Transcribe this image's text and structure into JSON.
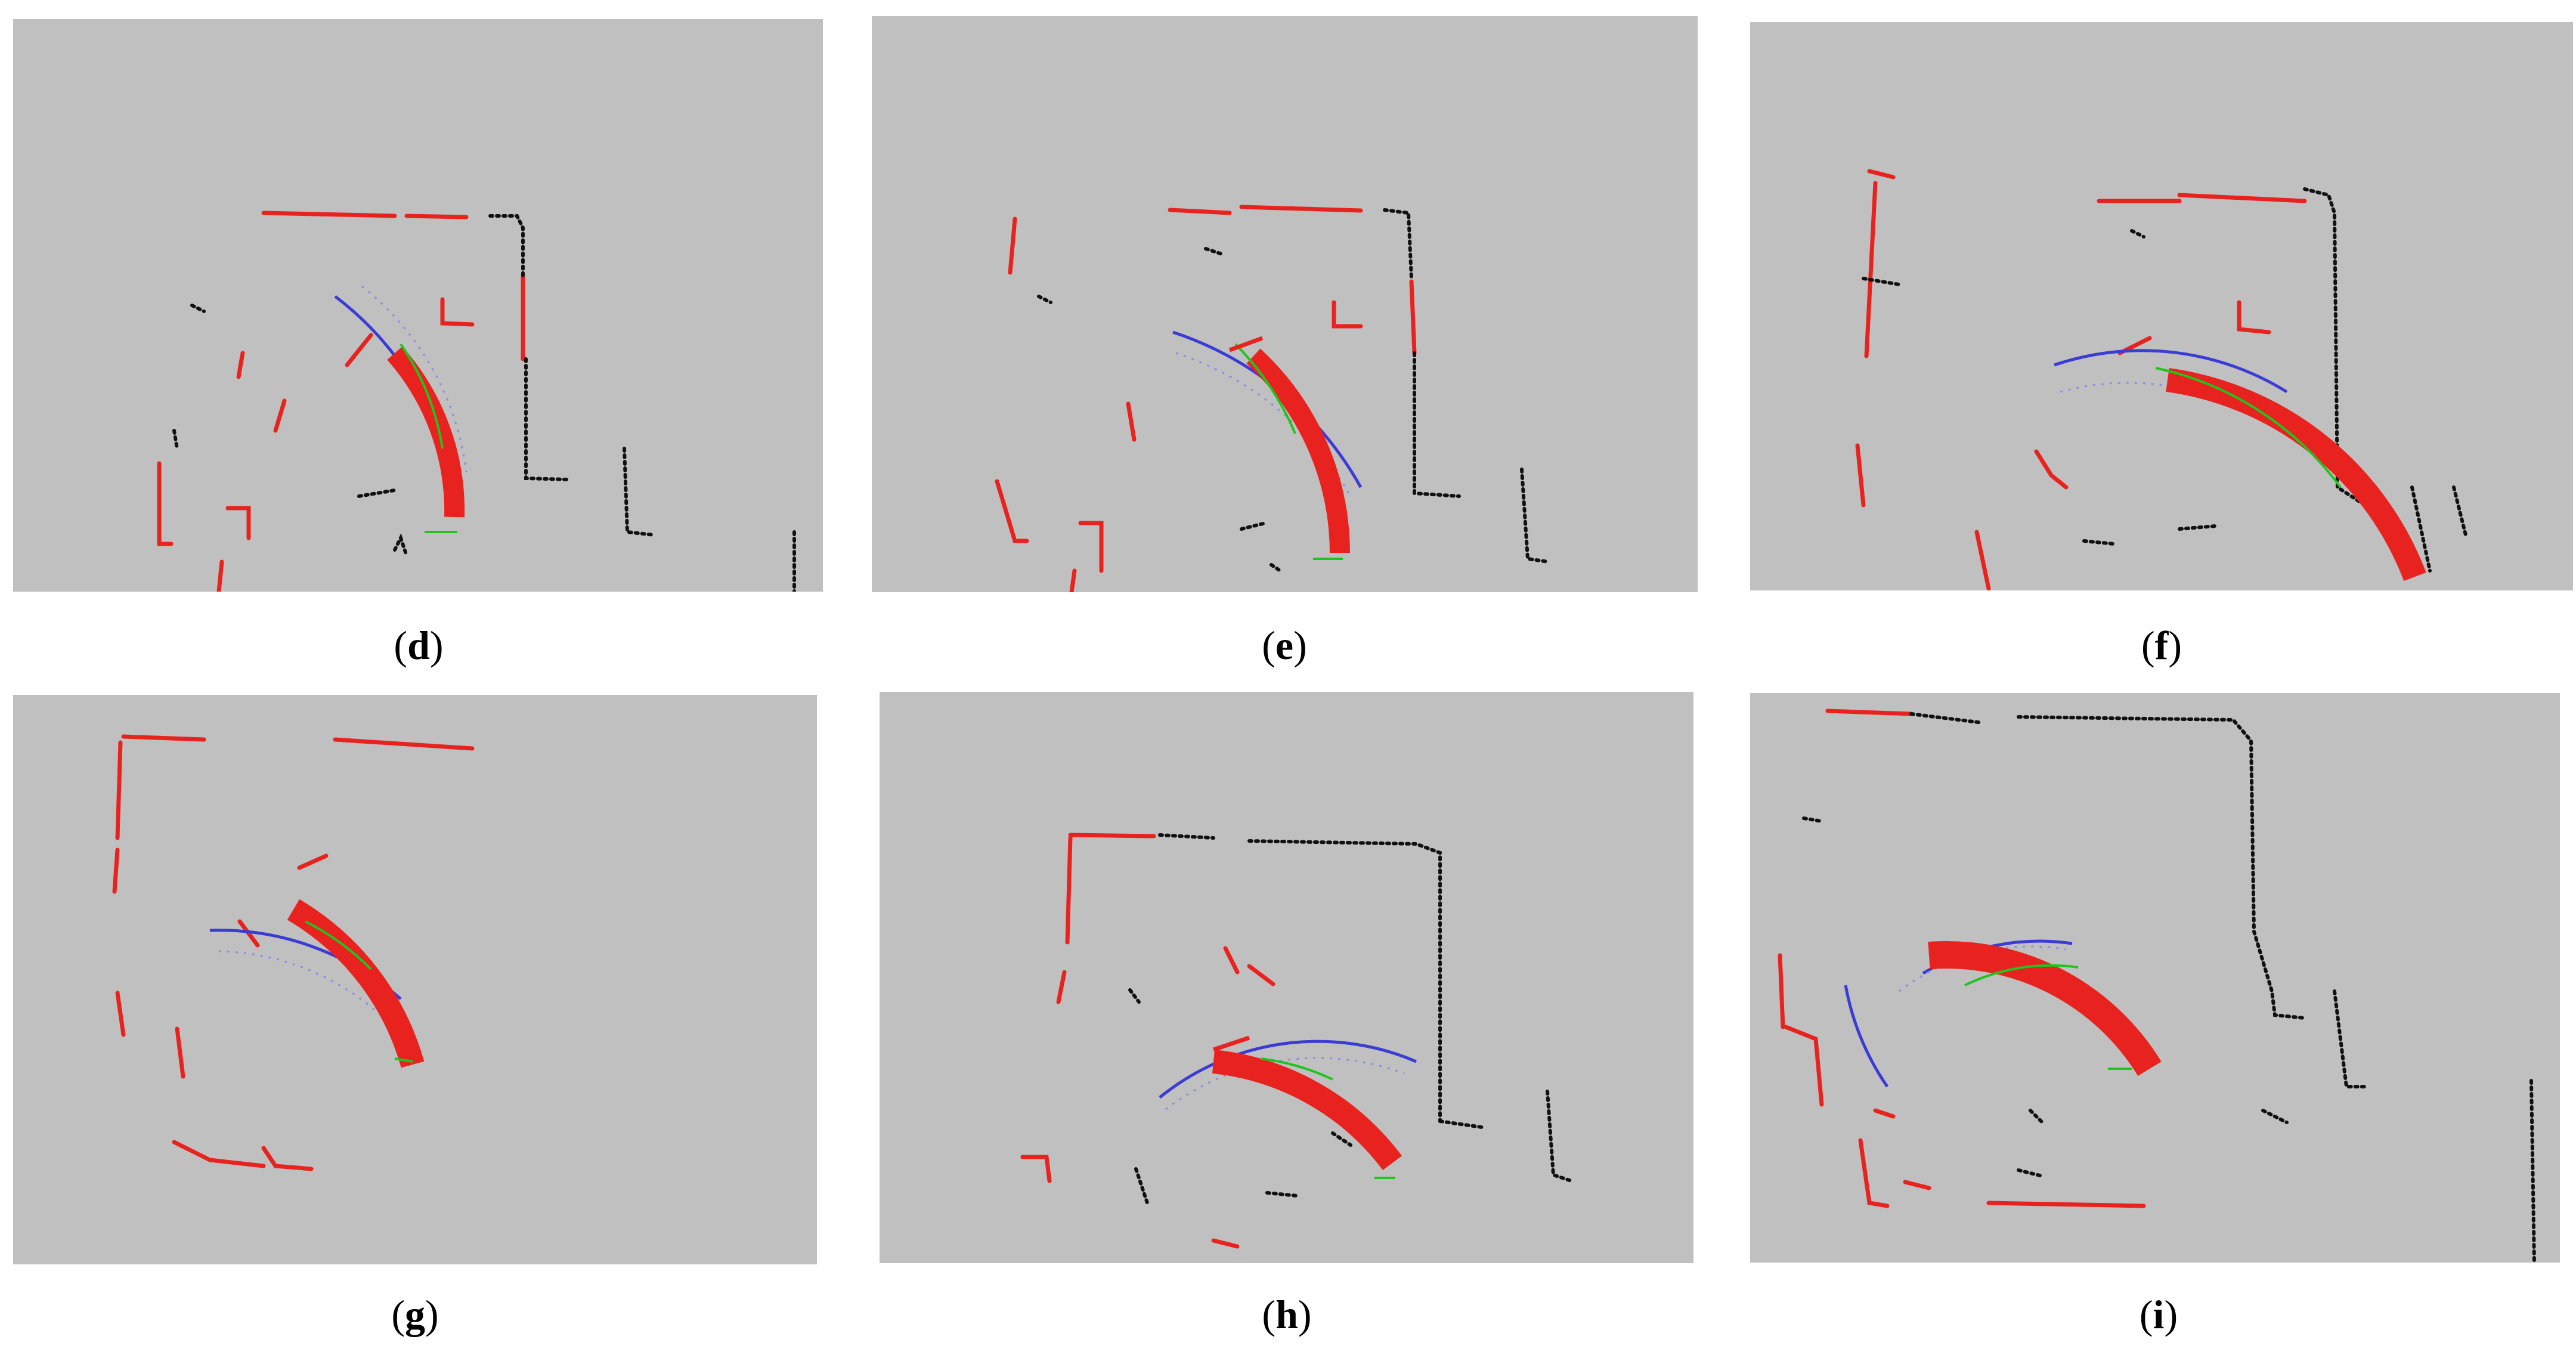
{
  "colors": {
    "background": "#c0c0c0",
    "scan_red": "#e8231f",
    "scan_black": "#111111",
    "footprint_blue": "#3b3bd6",
    "grid_lines": "#8d8de0",
    "trajectory_green": "#1fc41f",
    "trajectory_yellow": "#e6c21a",
    "trajectory_white": "#f0f0f0"
  },
  "panels": [
    {
      "id": "d",
      "caption_open": "(",
      "caption_letter": "d",
      "caption_close": ")"
    },
    {
      "id": "e",
      "caption_open": "(",
      "caption_letter": "e",
      "caption_close": ")"
    },
    {
      "id": "f",
      "caption_open": "(",
      "caption_letter": "f",
      "caption_close": ")"
    },
    {
      "id": "g",
      "caption_open": "(",
      "caption_letter": "g",
      "caption_close": ")"
    },
    {
      "id": "h",
      "caption_open": "(",
      "caption_letter": "h",
      "caption_close": ")"
    },
    {
      "id": "i",
      "caption_open": "(",
      "caption_letter": "i",
      "caption_close": ")"
    }
  ]
}
